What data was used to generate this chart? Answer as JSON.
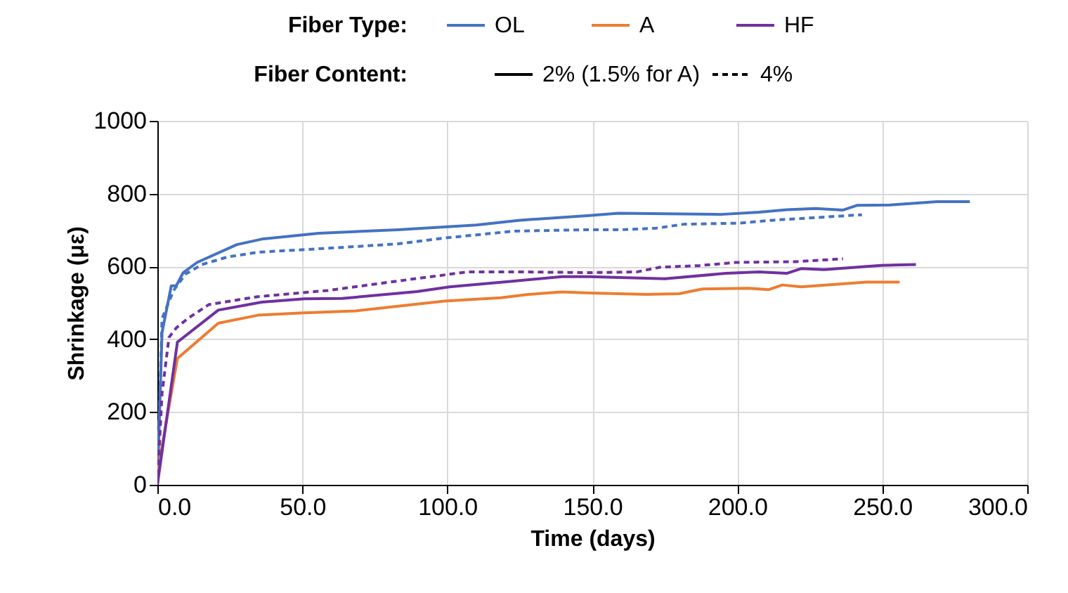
{
  "chart_data": {
    "type": "line",
    "xlabel": "Time (days)",
    "ylabel": "Shrinkage (με)",
    "legend_title": "Fiber Type:",
    "legend": "top",
    "grid": true,
    "annotations": [
      "Fiber Content:",
      "2% (1.5% for A)",
      "4%"
    ],
    "xlim": [
      0,
      300
    ],
    "ylim": [
      0,
      1000
    ],
    "xticks": [
      {
        "value": 0,
        "label": "0.0"
      },
      {
        "value": 50,
        "label": "50.0"
      },
      {
        "value": 100,
        "label": "100.0"
      },
      {
        "value": 150,
        "label": "150.0"
      },
      {
        "value": 200,
        "label": "200.0"
      },
      {
        "value": 250,
        "label": "250.0"
      },
      {
        "value": 300,
        "label": "300.0"
      }
    ],
    "yticks": [
      0,
      200,
      400,
      600,
      800,
      1000
    ],
    "series": [
      {
        "name": "OL",
        "color": "#4472c4",
        "line_style": "solid",
        "x": [
          0,
          1.6,
          4.8,
          6.5,
          8.9,
          13.7,
          27.4,
          36,
          55.6,
          83,
          110,
          125,
          149,
          159,
          194.5,
          207.5,
          217,
          227,
          236.5,
          241.4,
          252.7,
          268.9,
          280.2
        ],
        "values": [
          0,
          418,
          547,
          547,
          583,
          611,
          660,
          675,
          691,
          701,
          714,
          727,
          740,
          746,
          743,
          749,
          756,
          759,
          755,
          768,
          769,
          778,
          778
        ]
      },
      {
        "color": "#4472c4",
        "line_style": "dashed",
        "x": [
          0,
          1.6,
          5.6,
          9.7,
          15.3,
          24.2,
          34.7,
          58.9,
          83,
          99,
          123,
          149,
          160.4,
          172,
          181.6,
          201,
          212.3,
          243
        ],
        "values": [
          0,
          457,
          534,
          579,
          605,
          626,
          639,
          650,
          662,
          678,
          697,
          701,
          701,
          705,
          716,
          719,
          727,
          742
        ]
      },
      {
        "name": "A",
        "color": "#ed7d31",
        "line_style": "solid",
        "x": [
          0,
          6.9,
          21,
          34.7,
          49.2,
          68.5,
          99,
          118.5,
          128,
          139.5,
          149,
          168.7,
          180,
          188,
          204,
          210.7,
          215.5,
          222,
          244.6,
          256
        ],
        "values": [
          32,
          347,
          444,
          466,
          472,
          478,
          505,
          514,
          523,
          530,
          527,
          523,
          525,
          538,
          540,
          536,
          549,
          544,
          557,
          557
        ]
      },
      {
        "name": "HF",
        "color": "#7030a0",
        "line_style": "solid",
        "x": [
          0,
          6.9,
          21,
          36,
          50.8,
          63.7,
          89.5,
          100.8,
          121.8,
          139.5,
          149,
          175,
          196,
          207.5,
          217,
          222,
          230,
          249.5,
          261.6
        ],
        "values": [
          0,
          392,
          480,
          502,
          511,
          512,
          531,
          544,
          559,
          572,
          572,
          566,
          581,
          585,
          581,
          594,
          591,
          603,
          605
        ]
      },
      {
        "color": "#7030a0",
        "line_style": "dashed",
        "x": [
          0,
          1.6,
          4,
          6.5,
          10.5,
          17.7,
          34.7,
          58.9,
          83,
          107,
          125,
          149,
          165.4,
          173.5,
          186.5,
          199.4,
          220,
          236.5
        ],
        "values": [
          0,
          251,
          405,
          431,
          457,
          495,
          517,
          534,
          560,
          585,
          585,
          583,
          585,
          598,
          602,
          611,
          613,
          621
        ]
      }
    ]
  }
}
